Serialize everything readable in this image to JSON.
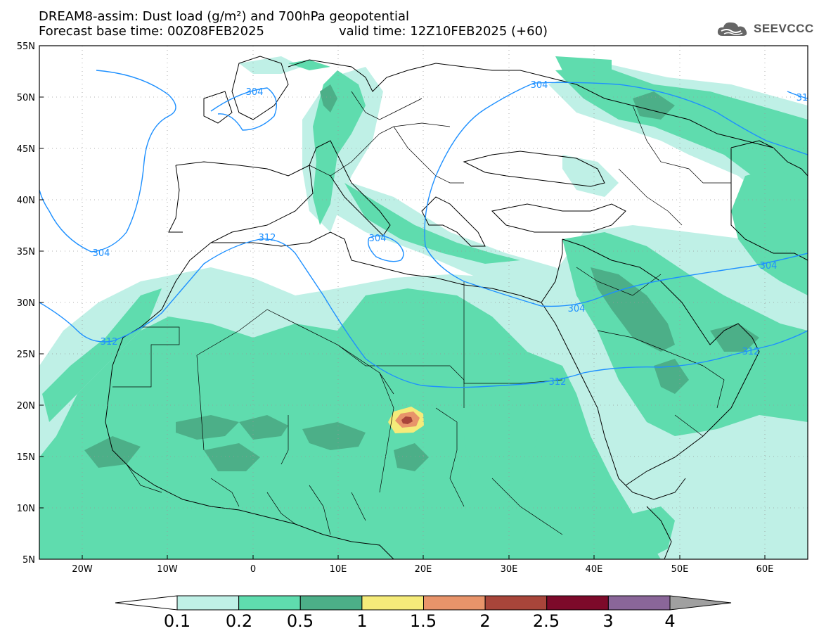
{
  "header": {
    "title_line1": "DREAM8-assim: Dust load (g/m²) and 700hPa geopotential",
    "title_line2": "Forecast base time: 00Z08FEB2025",
    "valid_time": "valid time: 12Z10FEB2025 (+60)",
    "logo_text": "SEEVCCC"
  },
  "map": {
    "lat_labels": [
      "55N",
      "50N",
      "45N",
      "40N",
      "35N",
      "30N",
      "25N",
      "20N",
      "15N",
      "10N",
      "5N"
    ],
    "lon_labels": [
      "20W",
      "10W",
      "0",
      "10E",
      "20E",
      "30E",
      "40E",
      "50E",
      "60E"
    ],
    "contour_labels": [
      "304",
      "304",
      "304",
      "304",
      "304",
      "312",
      "312",
      "312",
      "312",
      "304",
      "31"
    ]
  },
  "colorbar": {
    "labels": [
      "0.1",
      "0.2",
      "0.5",
      "1",
      "1.5",
      "2",
      "2.5",
      "3",
      "4"
    ],
    "colors": [
      "#bff0e6",
      "#5fdcae",
      "#4caf88",
      "#f5eb7a",
      "#e8946a",
      "#a8453a",
      "#7d0a2a",
      "#8a6699",
      "#a0a0a0"
    ]
  }
}
